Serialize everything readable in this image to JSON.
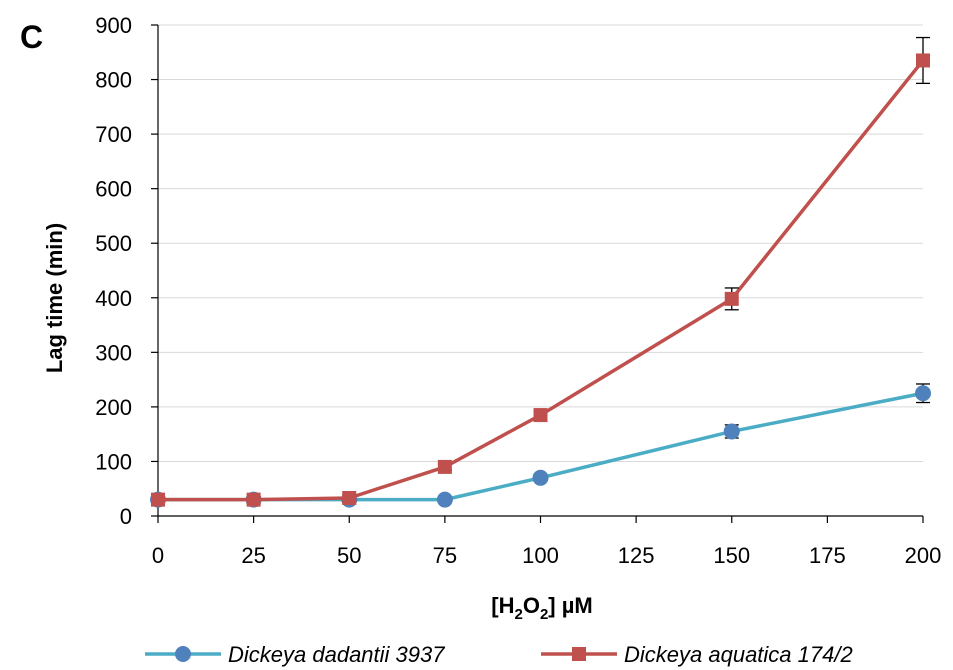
{
  "panel_label": "C",
  "chart_data": {
    "type": "line",
    "title": "",
    "ylabel": "Lag time (min)",
    "xlabel": {
      "prefix": "[H",
      "sub1": "2",
      "mid": "O",
      "sub2": "2",
      "suffix": "] µM"
    },
    "xlim": [
      0,
      200
    ],
    "ylim": [
      0,
      900
    ],
    "x_ticks": [
      0,
      25,
      50,
      75,
      100,
      125,
      150,
      175,
      200
    ],
    "y_ticks": [
      0,
      100,
      200,
      300,
      400,
      500,
      600,
      700,
      800,
      900
    ],
    "grid": "horizontal",
    "legend_position": "bottom",
    "series": [
      {
        "name": "Dickeya dadantii 3937",
        "color": "#4bacc6",
        "marker": "circle",
        "marker_color": "#4f81bd",
        "x": [
          0,
          25,
          50,
          75,
          100,
          150,
          200
        ],
        "y": [
          30,
          30,
          30,
          30,
          70,
          155,
          225
        ],
        "error": [
          0,
          0,
          0,
          0,
          0,
          12,
          17
        ]
      },
      {
        "name": "Dickeya aquatica 174/2",
        "color": "#c0504d",
        "marker": "square",
        "marker_color": "#c0504d",
        "x": [
          0,
          25,
          50,
          75,
          100,
          150,
          200
        ],
        "y": [
          30,
          30,
          33,
          90,
          185,
          398,
          835
        ],
        "error": [
          6,
          6,
          6,
          6,
          8,
          20,
          42
        ]
      }
    ]
  }
}
